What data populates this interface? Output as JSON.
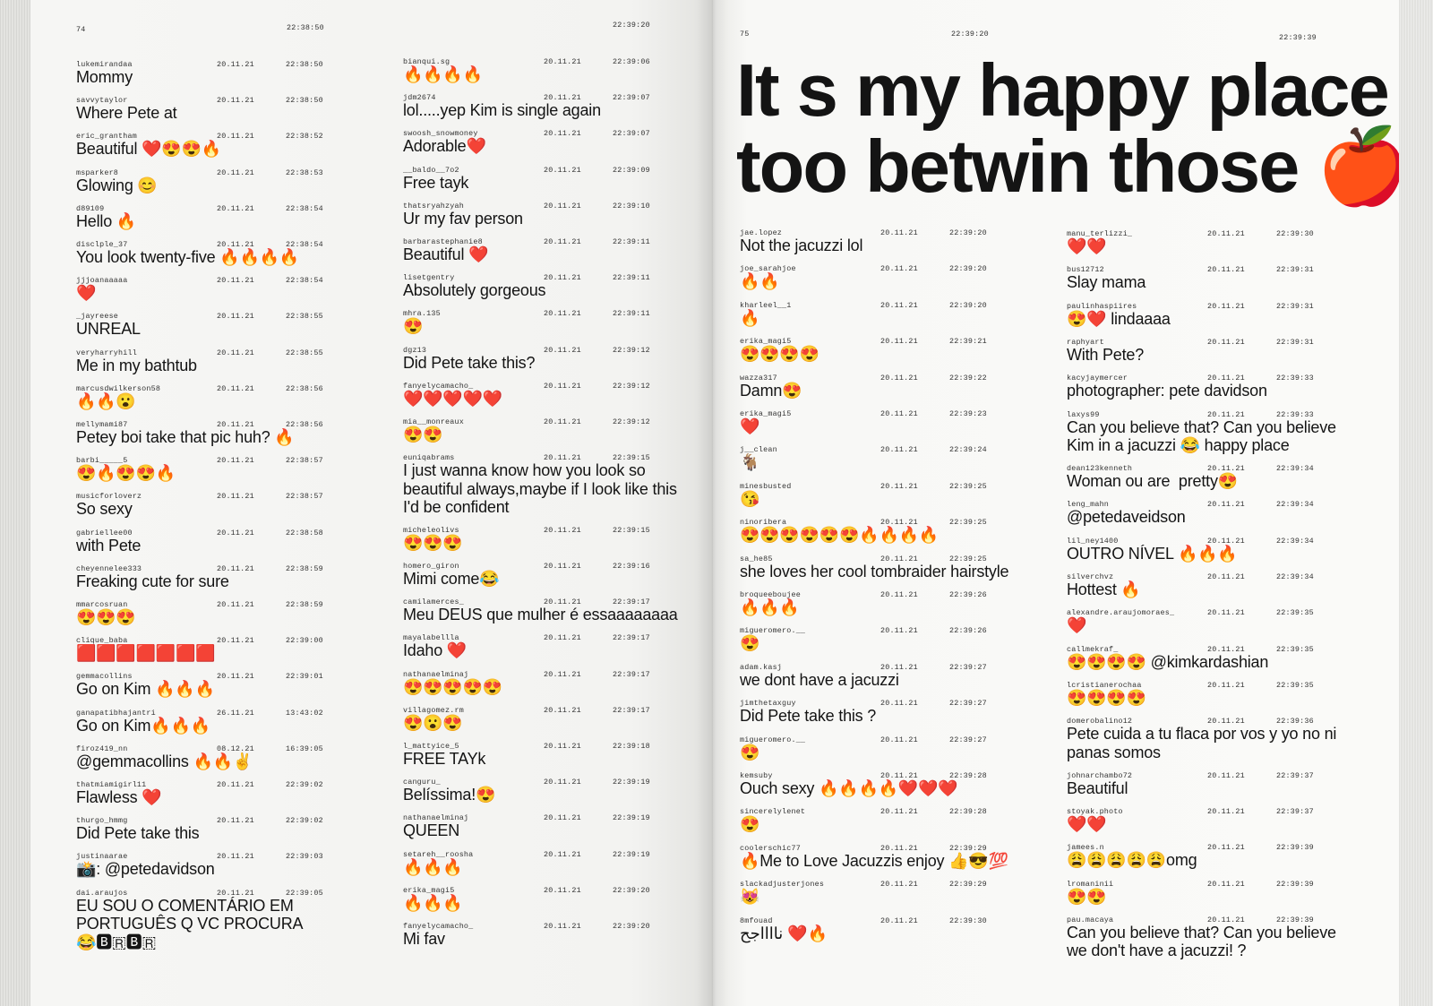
{
  "left_page": {
    "page_number": "74",
    "top_times": [
      "22:38:50",
      "22:39:20"
    ],
    "columns": [
      [
        {
          "user": "lukemirandaa",
          "date": "20.11.21",
          "time": "22:38:50",
          "comment": "Mommy"
        },
        {
          "user": "savvytaylor",
          "date": "20.11.21",
          "time": "22:38:50",
          "comment": "Where Pete at"
        },
        {
          "user": "eric_grantham",
          "date": "20.11.21",
          "time": "22:38:52",
          "comment": "Beautiful ❤️😍😍🔥"
        },
        {
          "user": "msparker8",
          "date": "20.11.21",
          "time": "22:38:53",
          "comment": "Glowing 😊"
        },
        {
          "user": "d89109",
          "date": "20.11.21",
          "time": "22:38:54",
          "comment": "Hello 🔥"
        },
        {
          "user": "disclple_37",
          "date": "20.11.21",
          "time": "22:38:54",
          "comment": "You look twenty-five 🔥🔥🔥🔥"
        },
        {
          "user": "jjjoanaaaaa",
          "date": "20.11.21",
          "time": "22:38:54",
          "comment": "❤️"
        },
        {
          "user": "_jayreese",
          "date": "20.11.21",
          "time": "22:38:55",
          "comment": "UNREAL"
        },
        {
          "user": "veryharryhill",
          "date": "20.11.21",
          "time": "22:38:55",
          "comment": "Me in my bathtub"
        },
        {
          "user": "marcusdwilkerson58",
          "date": "20.11.21",
          "time": "22:38:56",
          "comment": "🔥🔥😮"
        },
        {
          "user": "mellymami87",
          "date": "20.11.21",
          "time": "22:38:56",
          "comment": "Petey boi take that pic huh? 🔥"
        },
        {
          "user": "barbi_____5",
          "date": "20.11.21",
          "time": "22:38:57",
          "comment": "😍🔥😍😍🔥"
        },
        {
          "user": "musicforloverz",
          "date": "20.11.21",
          "time": "22:38:57",
          "comment": "So sexy"
        },
        {
          "user": "gabriellee00",
          "date": "20.11.21",
          "time": "22:38:58",
          "comment": "with Pete"
        },
        {
          "user": "cheyennelee333",
          "date": "20.11.21",
          "time": "22:38:59",
          "comment": "Freaking cute for sure"
        },
        {
          "user": "mmarcosruan",
          "date": "20.11.21",
          "time": "22:38:59",
          "comment": "😍😍😍"
        },
        {
          "user": "clique_baba",
          "date": "20.11.21",
          "time": "22:39:00",
          "comment": "🟥🟥🟥🟥🟥🟥🟥"
        },
        {
          "user": "gemmacollins",
          "date": "20.11.21",
          "time": "22:39:01",
          "comment": "Go on Kim 🔥🔥🔥"
        },
        {
          "user": "ganapatibhajantri",
          "date": "26.11.21",
          "time": "13:43:02",
          "comment": "Go on Kim🔥🔥🔥"
        },
        {
          "user": "firoz419_nn",
          "date": "08.12.21",
          "time": "16:39:05",
          "comment": "@gemmacollins 🔥🔥✌️"
        },
        {
          "user": "thatmiamigirl11",
          "date": "20.11.21",
          "time": "22:39:02",
          "comment": "Flawless ❤️"
        },
        {
          "user": "thurgo_hmmg",
          "date": "20.11.21",
          "time": "22:39:02",
          "comment": "Did Pete take this"
        },
        {
          "user": "justinaarae",
          "date": "20.11.21",
          "time": "22:39:03",
          "comment": "📸: @petedavidson"
        },
        {
          "user": "dai.araujos",
          "date": "20.11.21",
          "time": "22:39:05",
          "comment": "EU SOU O COMENTÁRIO EM\nPORTUGUÊS Q VC PROCURA\n😂🅱🇷🅱🇷"
        }
      ],
      [
        {
          "user": "bianqui.sg",
          "date": "20.11.21",
          "time": "22:39:06",
          "comment": "🔥🔥🔥🔥"
        },
        {
          "user": "jdm2674",
          "date": "20.11.21",
          "time": "22:39:07",
          "comment": "lol.....yep Kim is single again"
        },
        {
          "user": "swoosh_snowmoney",
          "date": "20.11.21",
          "time": "22:39:07",
          "comment": "Adorable❤️"
        },
        {
          "user": "__baldo__7o2",
          "date": "20.11.21",
          "time": "22:39:09",
          "comment": "Free tayk"
        },
        {
          "user": "thatsryahzyah",
          "date": "20.11.21",
          "time": "22:39:10",
          "comment": "Ur my fav person"
        },
        {
          "user": "barbarastephanie8",
          "date": "20.11.21",
          "time": "22:39:11",
          "comment": "Beautiful ❤️"
        },
        {
          "user": "lisetgentry",
          "date": "20.11.21",
          "time": "22:39:11",
          "comment": "Absolutely gorgeous"
        },
        {
          "user": "mhra.135",
          "date": "20.11.21",
          "time": "22:39:11",
          "comment": "😍"
        },
        {
          "user": "dgz13",
          "date": "20.11.21",
          "time": "22:39:12",
          "comment": "Did Pete take this?"
        },
        {
          "user": "fanyelycamacho_",
          "date": "20.11.21",
          "time": "22:39:12",
          "comment": "❤️❤️❤️❤️❤️"
        },
        {
          "user": "mia__monreaux",
          "date": "20.11.21",
          "time": "22:39:12",
          "comment": "😍😍"
        },
        {
          "user": "euniqabrams",
          "date": "20.11.21",
          "time": "22:39:15",
          "comment": "I just wanna know how you look so\nbeautiful always,maybe if I look like this\nI'd be confident"
        },
        {
          "user": "micheleolivs",
          "date": "20.11.21",
          "time": "22:39:15",
          "comment": "😍😍😍"
        },
        {
          "user": "homero_giron",
          "date": "20.11.21",
          "time": "22:39:16",
          "comment": "Mimi come😂"
        },
        {
          "user": "camilamerces_",
          "date": "20.11.21",
          "time": "22:39:17",
          "comment": "Meu DEUS que mulher é essaaaaaaaa"
        },
        {
          "user": "mayalabellla",
          "date": "20.11.21",
          "time": "22:39:17",
          "comment": "Idaho ❤️"
        },
        {
          "user": "nathanaelminaj",
          "date": "20.11.21",
          "time": "22:39:17",
          "comment": "😍😍😍😍😍"
        },
        {
          "user": "villagomez.rm",
          "date": "20.11.21",
          "time": "22:39:17",
          "comment": "😍😮😍"
        },
        {
          "user": "l_mattyice_5",
          "date": "20.11.21",
          "time": "22:39:18",
          "comment": "FREE TAYk"
        },
        {
          "user": "canguru_",
          "date": "20.11.21",
          "time": "22:39:19",
          "comment": "Belíssima!😍"
        },
        {
          "user": "nathanaelminaj",
          "date": "20.11.21",
          "time": "22:39:19",
          "comment": "QUEEN"
        },
        {
          "user": "setareh__roosha",
          "date": "20.11.21",
          "time": "22:39:19",
          "comment": "🔥🔥🔥"
        },
        {
          "user": "erika_magi5",
          "date": "20.11.21",
          "time": "22:39:20",
          "comment": "🔥🔥🔥"
        },
        {
          "user": "fanyelycamacho_",
          "date": "20.11.21",
          "time": "22:39:20",
          "comment": "Mi fav"
        }
      ]
    ]
  },
  "right_page": {
    "page_number": "75",
    "top_times": [
      "22:39:20",
      "22:39:39"
    ],
    "headline_line1": "It s my happy place",
    "headline_line2": "too betwin those 🍎",
    "columns": [
      [
        {
          "user": "jae.lopez",
          "date": "20.11.21",
          "time": "22:39:20",
          "comment": "Not the jacuzzi lol"
        },
        {
          "user": "joe_sarahjoe",
          "date": "20.11.21",
          "time": "22:39:20",
          "comment": "🔥🔥"
        },
        {
          "user": "kharleel__1",
          "date": "20.11.21",
          "time": "22:39:20",
          "comment": "🔥"
        },
        {
          "user": "erika_magi5",
          "date": "20.11.21",
          "time": "22:39:21",
          "comment": "😍😍😍😍"
        },
        {
          "user": "wazza317",
          "date": "20.11.21",
          "time": "22:39:22",
          "comment": "Damn😍"
        },
        {
          "user": "erika_magi5",
          "date": "20.11.21",
          "time": "22:39:23",
          "comment": "❤️"
        },
        {
          "user": "j__clean",
          "date": "20.11.21",
          "time": "22:39:24",
          "comment": "🐐"
        },
        {
          "user": "minesbusted",
          "date": "20.11.21",
          "time": "22:39:25",
          "comment": "😘"
        },
        {
          "user": "ninoribera",
          "date": "20.11.21",
          "time": "22:39:25",
          "comment": "😍😍😍😍😍😍🔥🔥🔥🔥"
        },
        {
          "user": "sa_he85",
          "date": "20.11.21",
          "time": "22:39:25",
          "comment": "she loves her cool tombraider hairstyle"
        },
        {
          "user": "broqueeboujee",
          "date": "20.11.21",
          "time": "22:39:26",
          "comment": "🔥🔥🔥"
        },
        {
          "user": "migueromero.__",
          "date": "20.11.21",
          "time": "22:39:26",
          "comment": "😍"
        },
        {
          "user": "adam.kasj",
          "date": "20.11.21",
          "time": "22:39:27",
          "comment": "we dont have a jacuzzi"
        },
        {
          "user": "jimthetaxguy",
          "date": "20.11.21",
          "time": "22:39:27",
          "comment": "Did Pete take this ?"
        },
        {
          "user": "migueromero.__",
          "date": "20.11.21",
          "time": "22:39:27",
          "comment": "😍"
        },
        {
          "user": "kemsuby",
          "date": "20.11.21",
          "time": "22:39:28",
          "comment": "Ouch sexy 🔥🔥🔥🔥❤️❤️❤️"
        },
        {
          "user": "sincerelylenet",
          "date": "20.11.21",
          "time": "22:39:28",
          "comment": "😍"
        },
        {
          "user": "coolerschic77",
          "date": "20.11.21",
          "time": "22:39:29",
          "comment": "🔥Me to Love Jacuzzis enjoy 👍😎💯"
        },
        {
          "user": "slackadjusterjones",
          "date": "20.11.21",
          "time": "22:39:29",
          "comment": "😻"
        },
        {
          "user": "8mfouad",
          "date": "20.11.21",
          "time": "22:39:30",
          "comment": "نااااجح ❤️🔥"
        }
      ],
      [
        {
          "user": "manu_terlizzi_",
          "date": "20.11.21",
          "time": "22:39:30",
          "comment": "❤️❤️"
        },
        {
          "user": "bus12712",
          "date": "20.11.21",
          "time": "22:39:31",
          "comment": "Slay mama"
        },
        {
          "user": "paulinhaspiires",
          "date": "20.11.21",
          "time": "22:39:31",
          "comment": "😍❤️ lindaaaa"
        },
        {
          "user": "raphyart",
          "date": "20.11.21",
          "time": "22:39:31",
          "comment": "With Pete?"
        },
        {
          "user": "kacyjaymercer",
          "date": "20.11.21",
          "time": "22:39:33",
          "comment": "photographer: pete davidson"
        },
        {
          "user": "laxys99",
          "date": "20.11.21",
          "time": "22:39:33",
          "comment": "Can you believe that? Can you believe\nKim in a jacuzzi 😂 happy place"
        },
        {
          "user": "dean123kenneth",
          "date": "20.11.21",
          "time": "22:39:34",
          "comment": "Woman ou are  pretty😍"
        },
        {
          "user": "leng_mahn",
          "date": "20.11.21",
          "time": "22:39:34",
          "comment": "@petedaveidson"
        },
        {
          "user": "lil_ney1400",
          "date": "20.11.21",
          "time": "22:39:34",
          "comment": "OUTRO NÍVEL 🔥🔥🔥"
        },
        {
          "user": "silverchvz",
          "date": "20.11.21",
          "time": "22:39:34",
          "comment": "Hottest 🔥"
        },
        {
          "user": "alexandre.araujomoraes_",
          "date": "20.11.21",
          "time": "22:39:35",
          "comment": "❤️"
        },
        {
          "user": "callmekraf_",
          "date": "20.11.21",
          "time": "22:39:35",
          "comment": "😍😍😍😍 @kimkardashian"
        },
        {
          "user": "lcristianerochaa",
          "date": "20.11.21",
          "time": "22:39:35",
          "comment": "😍😍😍😍"
        },
        {
          "user": "domerobalino12",
          "date": "20.11.21",
          "time": "22:39:36",
          "comment": "Pete cuida a tu flaca por vos y yo no ni\npanas somos"
        },
        {
          "user": "johnarchambo72",
          "date": "20.11.21",
          "time": "22:39:37",
          "comment": "Beautiful"
        },
        {
          "user": "stoyak.photo",
          "date": "20.11.21",
          "time": "22:39:37",
          "comment": "❤️❤️"
        },
        {
          "user": "jamees.n",
          "date": "20.11.21",
          "time": "22:39:39",
          "comment": "😩😩😩😩😩omg"
        },
        {
          "user": "lromaninii",
          "date": "20.11.21",
          "time": "22:39:39",
          "comment": "😍😍"
        },
        {
          "user": "pau.macaya",
          "date": "20.11.21",
          "time": "22:39:39",
          "comment": "Can you believe that? Can you believe\nwe don't have a jacuzzi! ?"
        }
      ]
    ]
  }
}
